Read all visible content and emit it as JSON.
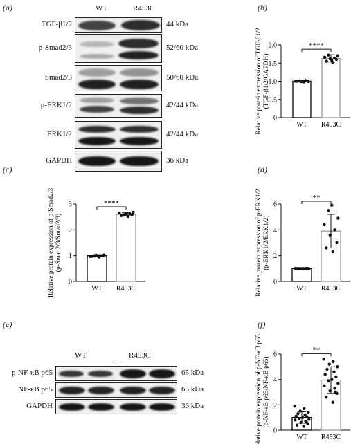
{
  "panels": {
    "a": {
      "letter": "(a)",
      "groups": [
        "WT",
        "R453C"
      ],
      "rows": [
        {
          "protein": "TGF-β1/2",
          "kda": "44 kDa"
        },
        {
          "protein": "p-Smad2/3",
          "kda": "52/60 kDa"
        },
        {
          "protein": "Smad2/3",
          "kda": "50/60 kDa"
        },
        {
          "protein": "p-ERK1/2",
          "kda": "42/44 kDa"
        },
        {
          "protein": "ERK1/2",
          "kda": "42/44 kDa"
        },
        {
          "protein": "GAPDH",
          "kda": "36 kDa"
        }
      ]
    },
    "e": {
      "letter": "(e)",
      "groups": [
        "WT",
        "R453C"
      ],
      "rows": [
        {
          "protein": "p-NF-κB p65",
          "kda": "65 kDa"
        },
        {
          "protein": "NF-κB p65",
          "kda": "65 kDa"
        },
        {
          "protein": "GAPDH",
          "kda": "36 kDa"
        }
      ]
    }
  },
  "chart_data": [
    {
      "panel": "(b)",
      "type": "bar",
      "categories": [
        "WT",
        "R453C"
      ],
      "values": [
        1.0,
        1.63
      ],
      "errors": [
        0.02,
        0.1
      ],
      "points": [
        [
          0.98,
          1.0,
          1.01,
          0.99,
          1.02,
          1.0,
          0.99,
          1.01,
          1.0
        ],
        [
          1.52,
          1.55,
          1.6,
          1.62,
          1.64,
          1.66,
          1.7,
          1.72,
          1.58
        ]
      ],
      "ylabel": "Relative protein expression of TGF-β1/2",
      "ylabel2": "(TGF-β1/2/GAPDH)",
      "ylim": [
        0,
        2.0
      ],
      "yticks": [
        "0",
        "0.5",
        "1.0",
        "1.5",
        "2.0"
      ],
      "significance": "****",
      "colors": {
        "WT": "#000000",
        "R453C": "#9a9a9a"
      }
    },
    {
      "panel": "(c)",
      "type": "bar",
      "categories": [
        "WT",
        "R453C"
      ],
      "values": [
        1.0,
        2.6
      ],
      "errors": [
        0.04,
        0.06
      ],
      "points": [
        [
          0.95,
          0.98,
          1.0,
          1.02,
          1.0,
          0.97,
          1.03,
          0.99,
          1.0
        ],
        [
          2.52,
          2.55,
          2.58,
          2.6,
          2.62,
          2.65,
          2.68,
          2.57,
          2.63
        ]
      ],
      "ylabel": "Relative protein expression of p-Smad2/3",
      "ylabel2": "(p-Smad2/3/Smad2/3)",
      "ylim": [
        0,
        3
      ],
      "yticks": [
        "0",
        "1",
        "2",
        "3"
      ],
      "significance": "****",
      "colors": {
        "WT": "#000000",
        "R453C": "#9a9a9a"
      }
    },
    {
      "panel": "(d)",
      "type": "bar",
      "categories": [
        "WT",
        "R453C"
      ],
      "values": [
        1.0,
        3.9
      ],
      "errors": [
        0.03,
        1.3
      ],
      "points": [
        [
          0.98,
          1.0,
          1.01,
          0.99,
          1.02,
          1.0,
          0.99,
          1.0,
          1.01
        ],
        [
          2.3,
          2.6,
          3.0,
          3.6,
          4.0,
          4.4,
          4.9,
          5.5,
          5.9
        ]
      ],
      "ylabel": "Relative protein expression of p-ERK1/2",
      "ylabel2": "(p-ERK1/2/ERK1/2)",
      "ylim": [
        0,
        6
      ],
      "yticks": [
        "0",
        "2",
        "4",
        "6"
      ],
      "significance": "**",
      "colors": {
        "WT": "#000000",
        "R453C": "#9a9a9a"
      }
    },
    {
      "panel": "(f)",
      "type": "bar",
      "categories": [
        "WT",
        "R453C"
      ],
      "values": [
        1.0,
        3.95
      ],
      "errors": [
        0.45,
        1.05
      ],
      "points": [
        [
          0.3,
          0.4,
          0.5,
          0.6,
          0.7,
          0.8,
          0.85,
          0.9,
          1.0,
          1.05,
          1.1,
          1.2,
          1.3,
          1.4,
          1.5,
          1.7,
          1.9,
          0.65
        ],
        [
          2.2,
          2.6,
          2.9,
          3.1,
          3.3,
          3.5,
          3.7,
          3.9,
          4.0,
          4.2,
          4.4,
          4.6,
          4.8,
          5.0,
          5.2,
          5.4,
          5.6,
          3.0
        ]
      ],
      "ylabel": "Relative protein expression of p-NF-κB p65",
      "ylabel2": "(p-NF-κB p65/NF-κB p65)",
      "ylim": [
        0,
        6
      ],
      "yticks": [
        "0",
        "2",
        "4",
        "6"
      ],
      "significance": "**",
      "colors": {
        "WT": "#000000",
        "R453C": "#9a9a9a"
      }
    }
  ]
}
